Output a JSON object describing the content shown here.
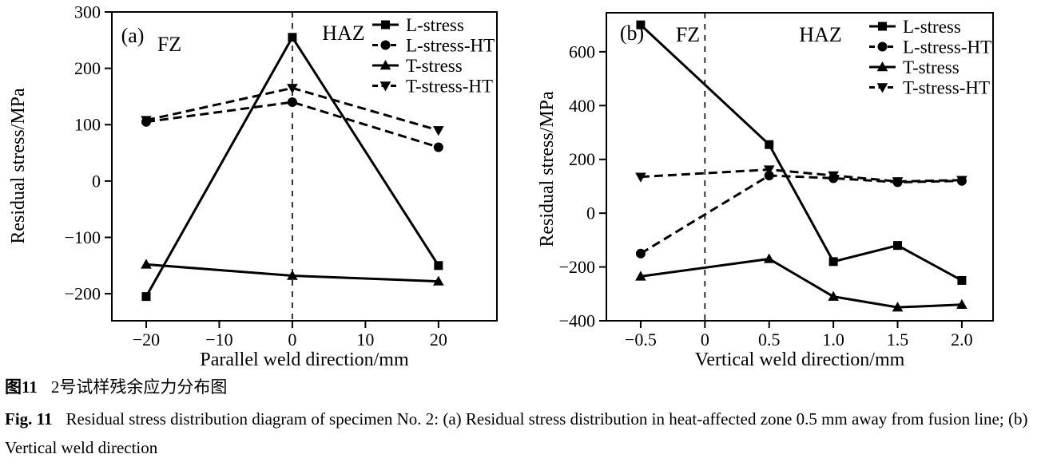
{
  "colors": {
    "ink": "#000000",
    "background": "#ffffff"
  },
  "caption": {
    "cn_label": "图11",
    "cn_text": "2号试样残余应力分布图",
    "en_label": "Fig. 11",
    "en_text": "Residual stress distribution diagram of specimen No. 2: (a) Residual stress distribution in heat-affected zone 0.5 mm away from fusion line; (b) Vertical weld direction"
  },
  "chart_data": [
    {
      "type": "line",
      "panel_label": "(a)",
      "title": "",
      "xlabel": "Parallel weld direction/mm",
      "ylabel": "Residual stress/MPa",
      "zone_left_label": "FZ",
      "zone_right_label": "HAZ",
      "x": [
        -20,
        0,
        20
      ],
      "xtick_vals": [
        -20,
        -10,
        0,
        10,
        20
      ],
      "xtick_labels": [
        "−20",
        "−10",
        "0",
        "10",
        "20"
      ],
      "ytick_vals": [
        300,
        200,
        100,
        0,
        -100,
        -200
      ],
      "ytick_labels": [
        "300",
        "200",
        "100",
        "0",
        "−100",
        "−200"
      ],
      "xlim": [
        -24.7,
        28.0
      ],
      "ylim": [
        -248,
        300
      ],
      "vline_x": 0,
      "grid": false,
      "legend_position": "top-right",
      "series": [
        {
          "name": "L-stress",
          "marker": "square",
          "dash": false,
          "values": [
            -205,
            255,
            -150
          ]
        },
        {
          "name": "L-stress-HT",
          "marker": "circle",
          "dash": true,
          "values": [
            105,
            140,
            60
          ]
        },
        {
          "name": "T-stress",
          "marker": "triangle-up",
          "dash": false,
          "values": [
            -148,
            -168,
            -178
          ]
        },
        {
          "name": "T-stress-HT",
          "marker": "triangle-down",
          "dash": true,
          "values": [
            108,
            165,
            90
          ]
        }
      ]
    },
    {
      "type": "line",
      "panel_label": "(b)",
      "title": "",
      "xlabel": "Vertical weld direction/mm",
      "ylabel": "Residual stress/MPa",
      "zone_left_label": "FZ",
      "zone_right_label": "HAZ",
      "x": [
        -0.5,
        0.5,
        1.0,
        1.5,
        2.0
      ],
      "xtick_vals": [
        -0.5,
        0,
        0.5,
        1.0,
        1.5,
        2.0
      ],
      "xtick_labels": [
        "−0.5",
        "0",
        "0.5",
        "1.0",
        "1.5",
        "2.0"
      ],
      "ytick_vals": [
        600,
        400,
        200,
        0,
        -200,
        -400
      ],
      "ytick_labels": [
        "600",
        "400",
        "200",
        "0",
        "−200",
        "−400"
      ],
      "xlim": [
        -0.767,
        2.243
      ],
      "ylim": [
        -400,
        745
      ],
      "vline_x": 0,
      "grid": false,
      "legend_position": "top-right",
      "series": [
        {
          "name": "L-stress",
          "marker": "square",
          "dash": false,
          "values": [
            700,
            255,
            -180,
            -120,
            -250
          ]
        },
        {
          "name": "L-stress-HT",
          "marker": "circle",
          "dash": true,
          "values": [
            -150,
            140,
            130,
            115,
            120
          ]
        },
        {
          "name": "T-stress",
          "marker": "triangle-up",
          "dash": false,
          "values": [
            -235,
            -170,
            -310,
            -350,
            -340
          ]
        },
        {
          "name": "T-stress-HT",
          "marker": "triangle-down",
          "dash": true,
          "values": [
            135,
            162,
            140,
            118,
            123
          ]
        }
      ]
    }
  ]
}
